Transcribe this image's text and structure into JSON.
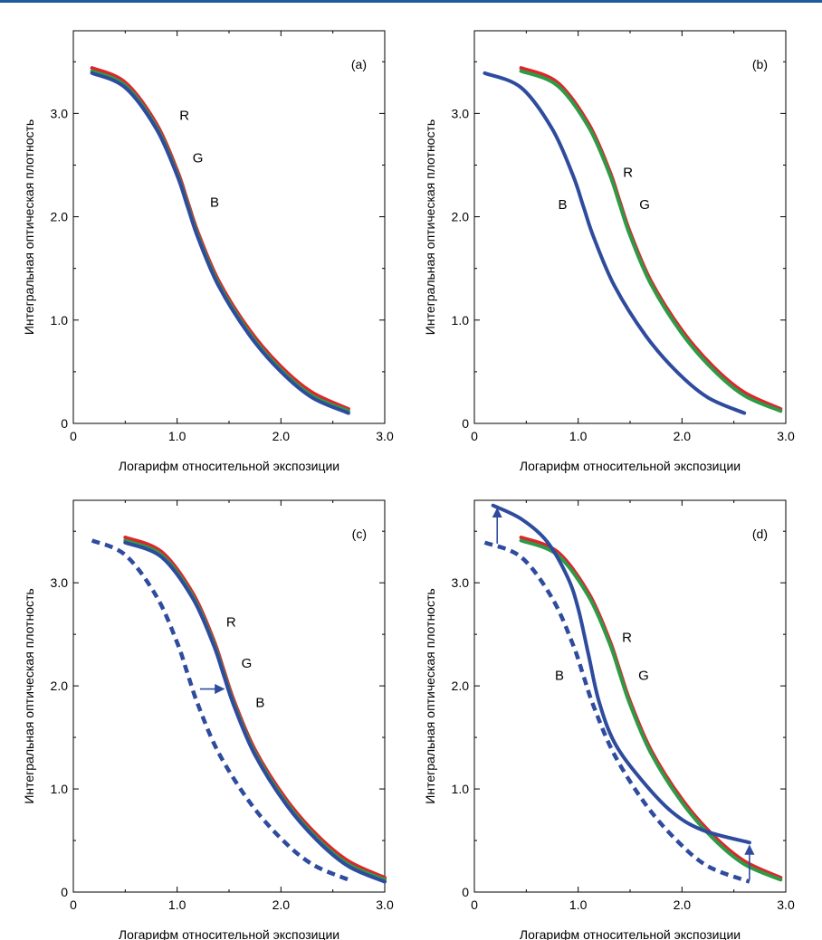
{
  "chart_data": [
    {
      "type": "line",
      "title": "(a)",
      "xlabel": "Логарифм относительной экспозиции",
      "ylabel": "Интегральная оптическая плотность",
      "xlim": [
        0,
        3.0
      ],
      "ylim": [
        0,
        3.8
      ],
      "xticks": [
        "0",
        "1.0",
        "2.0",
        "3.0"
      ],
      "yticks": [
        "0",
        "1.0",
        "2.0",
        "3.0"
      ],
      "grid": false,
      "series": [
        {
          "name": "R",
          "color": "#e0242b",
          "style": "solid",
          "x": [
            0.18,
            0.5,
            0.8,
            1.0,
            1.1,
            1.2,
            1.4,
            1.7,
            2.0,
            2.3,
            2.65
          ],
          "y": [
            3.44,
            3.3,
            2.9,
            2.45,
            2.15,
            1.85,
            1.38,
            0.9,
            0.55,
            0.3,
            0.14
          ]
        },
        {
          "name": "G",
          "color": "#2e9a47",
          "style": "solid",
          "x": [
            0.18,
            0.5,
            0.8,
            1.0,
            1.1,
            1.2,
            1.4,
            1.7,
            2.0,
            2.3,
            2.65
          ],
          "y": [
            3.41,
            3.27,
            2.87,
            2.42,
            2.12,
            1.82,
            1.35,
            0.87,
            0.52,
            0.27,
            0.12
          ]
        },
        {
          "name": "B",
          "color": "#2e4b9e",
          "style": "solid",
          "x": [
            0.18,
            0.5,
            0.8,
            1.0,
            1.1,
            1.2,
            1.4,
            1.7,
            2.0,
            2.3,
            2.65
          ],
          "y": [
            3.39,
            3.25,
            2.85,
            2.4,
            2.1,
            1.8,
            1.33,
            0.85,
            0.5,
            0.25,
            0.1
          ]
        }
      ],
      "labels": [
        {
          "text": "R",
          "x": 1.07,
          "y": 2.98
        },
        {
          "text": "G",
          "x": 1.2,
          "y": 2.57
        },
        {
          "text": "B",
          "x": 1.36,
          "y": 2.14
        }
      ],
      "arrows": []
    },
    {
      "type": "line",
      "title": "(b)",
      "xlabel": "Логарифм относительной экспозиции",
      "ylabel": "Интегральная оптическая плотность",
      "xlim": [
        0,
        3.0
      ],
      "ylim": [
        0,
        3.8
      ],
      "xticks": [
        "0",
        "1.0",
        "2.0",
        "3.0"
      ],
      "yticks": [
        "0",
        "1.0",
        "2.0",
        "3.0"
      ],
      "grid": false,
      "series": [
        {
          "name": "R",
          "color": "#e0242b",
          "style": "solid",
          "x": [
            0.45,
            0.8,
            1.1,
            1.3,
            1.4,
            1.5,
            1.7,
            2.0,
            2.3,
            2.6,
            2.95
          ],
          "y": [
            3.44,
            3.3,
            2.9,
            2.45,
            2.15,
            1.85,
            1.38,
            0.9,
            0.55,
            0.3,
            0.14
          ]
        },
        {
          "name": "G",
          "color": "#2e9a47",
          "style": "solid",
          "x": [
            0.45,
            0.8,
            1.1,
            1.3,
            1.4,
            1.5,
            1.7,
            2.0,
            2.3,
            2.6,
            2.95
          ],
          "y": [
            3.41,
            3.27,
            2.87,
            2.42,
            2.12,
            1.82,
            1.35,
            0.87,
            0.52,
            0.27,
            0.12
          ]
        },
        {
          "name": "B",
          "color": "#2e4b9e",
          "style": "solid",
          "x": [
            0.1,
            0.45,
            0.75,
            0.95,
            1.05,
            1.15,
            1.35,
            1.65,
            1.95,
            2.25,
            2.6
          ],
          "y": [
            3.39,
            3.25,
            2.85,
            2.4,
            2.1,
            1.8,
            1.33,
            0.85,
            0.5,
            0.25,
            0.1
          ]
        }
      ],
      "labels": [
        {
          "text": "R",
          "x": 1.48,
          "y": 2.43
        },
        {
          "text": "G",
          "x": 1.64,
          "y": 2.12
        },
        {
          "text": "B",
          "x": 0.85,
          "y": 2.12
        }
      ],
      "arrows": []
    },
    {
      "type": "line",
      "title": "(c)",
      "xlabel": "Логарифм относительной экспозиции",
      "ylabel": "Интегральная оптическая плотность",
      "xlim": [
        0,
        3.0
      ],
      "ylim": [
        0,
        3.8
      ],
      "xticks": [
        "0",
        "1.0",
        "2.0",
        "3.0"
      ],
      "yticks": [
        "0",
        "1.0",
        "2.0",
        "3.0"
      ],
      "grid": false,
      "series": [
        {
          "name": "R",
          "color": "#e0242b",
          "style": "solid",
          "x": [
            0.5,
            0.85,
            1.15,
            1.35,
            1.45,
            1.55,
            1.75,
            2.05,
            2.35,
            2.65,
            3.0
          ],
          "y": [
            3.44,
            3.3,
            2.9,
            2.45,
            2.15,
            1.85,
            1.38,
            0.9,
            0.55,
            0.3,
            0.14
          ]
        },
        {
          "name": "G",
          "color": "#2e9a47",
          "style": "solid",
          "x": [
            0.5,
            0.85,
            1.15,
            1.35,
            1.45,
            1.55,
            1.75,
            2.05,
            2.35,
            2.65,
            3.0
          ],
          "y": [
            3.41,
            3.27,
            2.87,
            2.42,
            2.12,
            1.82,
            1.35,
            0.87,
            0.52,
            0.27,
            0.12
          ]
        },
        {
          "name": "B",
          "color": "#2e4b9e",
          "style": "solid",
          "x": [
            0.5,
            0.85,
            1.15,
            1.35,
            1.45,
            1.55,
            1.75,
            2.05,
            2.35,
            2.65,
            3.0
          ],
          "y": [
            3.39,
            3.25,
            2.85,
            2.4,
            2.1,
            1.8,
            1.33,
            0.85,
            0.5,
            0.25,
            0.1
          ]
        },
        {
          "name": "",
          "color": "#2e4b9e",
          "style": "dashed",
          "x": [
            0.18,
            0.5,
            0.8,
            1.0,
            1.1,
            1.2,
            1.4,
            1.7,
            2.0,
            2.3,
            2.65
          ],
          "y": [
            3.41,
            3.27,
            2.87,
            2.42,
            2.12,
            1.82,
            1.35,
            0.87,
            0.52,
            0.27,
            0.12
          ]
        }
      ],
      "labels": [
        {
          "text": "R",
          "x": 1.52,
          "y": 2.62
        },
        {
          "text": "G",
          "x": 1.67,
          "y": 2.22
        },
        {
          "text": "B",
          "x": 1.8,
          "y": 1.84
        }
      ],
      "arrows": [
        {
          "from": [
            1.22,
            1.97
          ],
          "to": [
            1.45,
            1.97
          ]
        }
      ]
    },
    {
      "type": "line",
      "title": "(d)",
      "xlabel": "Логарифм относительной экспозиции",
      "ylabel": "Интегральная оптическая плотность",
      "xlim": [
        0,
        3.0
      ],
      "ylim": [
        0,
        3.8
      ],
      "xticks": [
        "0",
        "1.0",
        "2.0",
        "3.0"
      ],
      "yticks": [
        "0",
        "1.0",
        "2.0",
        "3.0"
      ],
      "grid": false,
      "series": [
        {
          "name": "R",
          "color": "#e0242b",
          "style": "solid",
          "x": [
            0.45,
            0.8,
            1.1,
            1.3,
            1.4,
            1.5,
            1.7,
            2.0,
            2.3,
            2.6,
            2.95
          ],
          "y": [
            3.44,
            3.3,
            2.9,
            2.45,
            2.15,
            1.85,
            1.38,
            0.9,
            0.55,
            0.3,
            0.14
          ]
        },
        {
          "name": "G",
          "color": "#2e9a47",
          "style": "solid",
          "x": [
            0.45,
            0.8,
            1.1,
            1.3,
            1.4,
            1.5,
            1.7,
            2.0,
            2.3,
            2.6,
            2.95
          ],
          "y": [
            3.41,
            3.27,
            2.87,
            2.42,
            2.12,
            1.82,
            1.35,
            0.87,
            0.52,
            0.27,
            0.12
          ]
        },
        {
          "name": "B",
          "color": "#2e4b9e",
          "style": "solid",
          "x": [
            0.18,
            0.45,
            0.7,
            0.9,
            1.0,
            1.1,
            1.2,
            1.35,
            1.6,
            1.9,
            2.2,
            2.65
          ],
          "y": [
            3.75,
            3.62,
            3.4,
            3.05,
            2.75,
            2.3,
            1.85,
            1.45,
            1.1,
            0.78,
            0.6,
            0.48
          ]
        },
        {
          "name": "",
          "color": "#2e4b9e",
          "style": "dashed",
          "x": [
            0.1,
            0.45,
            0.75,
            0.95,
            1.05,
            1.15,
            1.35,
            1.65,
            1.95,
            2.25,
            2.65
          ],
          "y": [
            3.39,
            3.25,
            2.85,
            2.4,
            2.1,
            1.8,
            1.33,
            0.85,
            0.5,
            0.25,
            0.1
          ]
        }
      ],
      "labels": [
        {
          "text": "R",
          "x": 1.47,
          "y": 2.47
        },
        {
          "text": "G",
          "x": 1.63,
          "y": 2.1
        },
        {
          "text": "B",
          "x": 0.82,
          "y": 2.1
        }
      ],
      "arrows": [
        {
          "from": [
            0.22,
            3.38
          ],
          "to": [
            0.22,
            3.72
          ]
        },
        {
          "from": [
            2.65,
            0.12
          ],
          "to": [
            2.65,
            0.45
          ]
        }
      ]
    }
  ]
}
